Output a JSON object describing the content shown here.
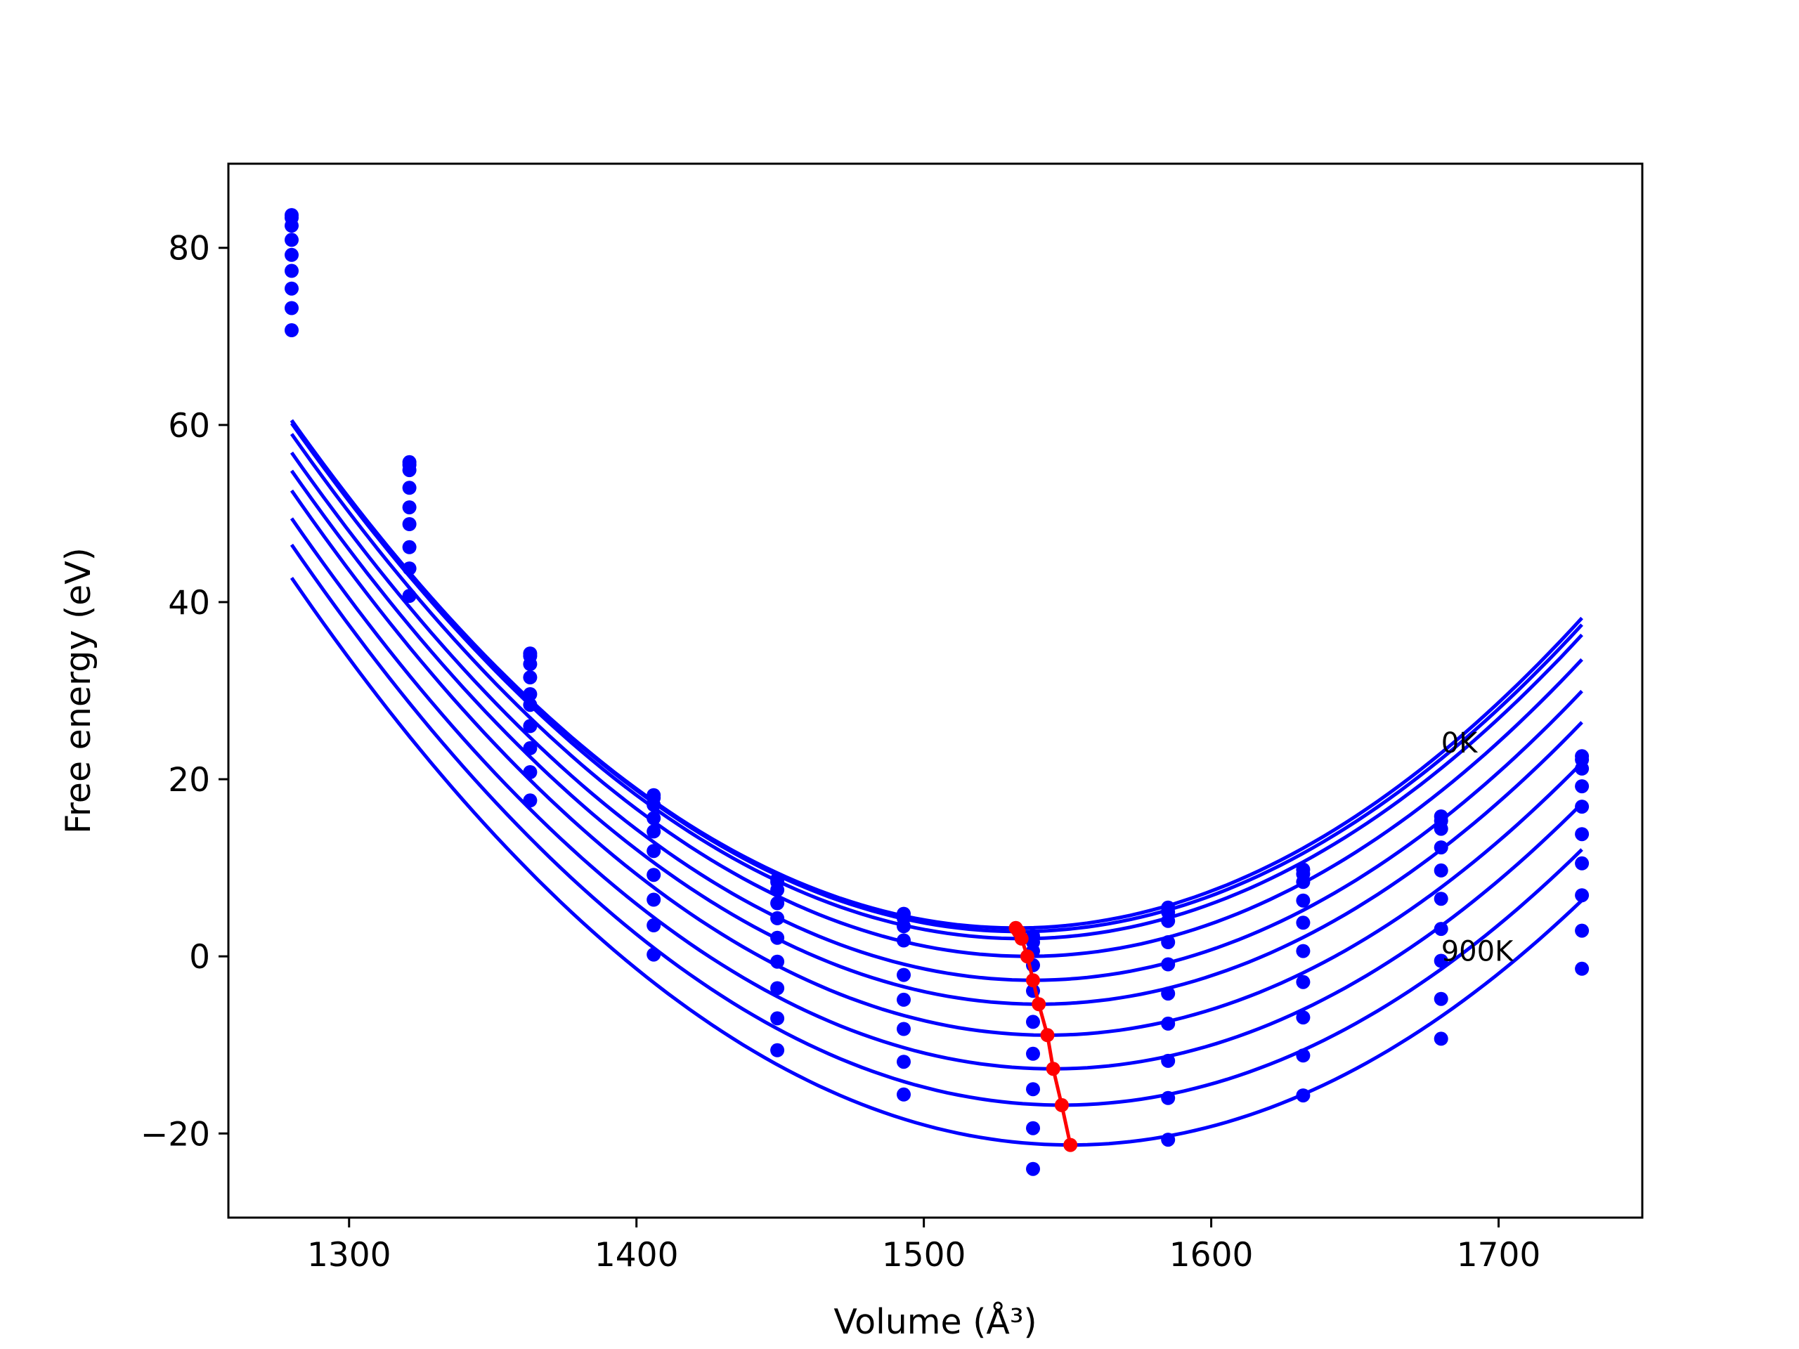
{
  "chart_data": {
    "type": "scatter",
    "title": "",
    "xlabel": "Volume (Å³)",
    "ylabel": "Free energy (eV)",
    "xlim": [
      1258,
      1750
    ],
    "ylim": [
      -29.5,
      89.5
    ],
    "xticks": [
      1300,
      1400,
      1500,
      1600,
      1700
    ],
    "yticks": [
      -20,
      0,
      20,
      40,
      60,
      80
    ],
    "xtick_labels": [
      "1300",
      "1400",
      "1500",
      "1600",
      "1700"
    ],
    "ytick_labels": [
      "−20",
      "0",
      "20",
      "40",
      "60",
      "80"
    ],
    "grid": false,
    "legend": "none",
    "colors": {
      "curves": "#0000ff",
      "minima": "#ff0000",
      "axes": "#000000"
    },
    "annotations": [
      {
        "text": "0K",
        "x": 1680,
        "y": 23
      },
      {
        "text": "900K",
        "x": 1680,
        "y": -0.5
      }
    ],
    "x": [
      1280,
      1321,
      1363,
      1406,
      1449,
      1493,
      1538,
      1585,
      1632,
      1680,
      1729
    ],
    "series": [
      {
        "fit": [
          1532,
          3.2,
          0.000902
        ],
        "y": [
          83.7,
          55.8,
          34.2,
          18.2,
          8.7,
          4.8,
          2.3,
          5.5,
          9.8,
          15.8,
          22.6
        ]
      },
      {
        "fit": [
          1533,
          2.8,
          0.000902
        ],
        "y": [
          83.4,
          55.5,
          33.9,
          17.9,
          8.4,
          4.3,
          1.6,
          5.0,
          9.3,
          15.3,
          22.2
        ]
      },
      {
        "fit": [
          1534,
          2.0,
          0.000902
        ],
        "y": [
          82.5,
          54.9,
          33.0,
          17.1,
          7.5,
          3.4,
          0.6,
          4.0,
          8.4,
          14.4,
          21.2
        ]
      },
      {
        "fit": [
          1536,
          0.0,
          0.0009
        ],
        "y": [
          80.9,
          52.9,
          31.5,
          15.6,
          6.0,
          1.8,
          -1.0,
          1.6,
          6.3,
          12.3,
          19.2
        ]
      },
      {
        "fit": [
          1538,
          -2.7,
          0.000895
        ],
        "y": [
          79.2,
          50.7,
          29.6,
          14.1,
          4.3,
          -2.1,
          -3.9,
          -0.9,
          3.8,
          9.7,
          16.9
        ]
      },
      {
        "fit": [
          1540,
          -5.4,
          0.000891
        ],
        "y": [
          77.4,
          48.8,
          28.4,
          11.9,
          2.1,
          -4.9,
          -7.4,
          -4.2,
          0.6,
          6.5,
          13.8
        ]
      },
      {
        "fit": [
          1543,
          -8.9,
          0.000889
        ],
        "y": [
          75.4,
          46.2,
          26.0,
          9.2,
          -0.6,
          -8.2,
          -11.0,
          -7.6,
          -2.9,
          3.1,
          10.5
        ]
      },
      {
        "fit": [
          1545,
          -12.7,
          0.000885
        ],
        "y": [
          73.2,
          43.8,
          23.5,
          6.4,
          -3.6,
          -11.9,
          -15.0,
          -11.8,
          -6.9,
          -0.5,
          6.9
        ]
      },
      {
        "fit": [
          1548,
          -16.8,
          0.000881
        ],
        "y": [
          70.7,
          40.7,
          20.8,
          3.5,
          -7.0,
          -15.6,
          -19.4,
          -16.0,
          -11.2,
          -4.8,
          2.9
        ]
      },
      {
        "fit": [
          1551,
          -21.3,
          0.000872
        ],
        "y": [
          null,
          null,
          17.6,
          0.2,
          -10.6,
          null,
          -24.0,
          -20.7,
          -15.7,
          -9.3,
          -1.4
        ]
      }
    ],
    "minima": {
      "x": [
        1532,
        1533,
        1534,
        1536,
        1538,
        1540,
        1543,
        1545,
        1548,
        1551
      ],
      "y": [
        3.2,
        2.8,
        2.0,
        0.0,
        -2.7,
        -5.4,
        -8.9,
        -12.7,
        -16.8,
        -21.3
      ]
    }
  }
}
